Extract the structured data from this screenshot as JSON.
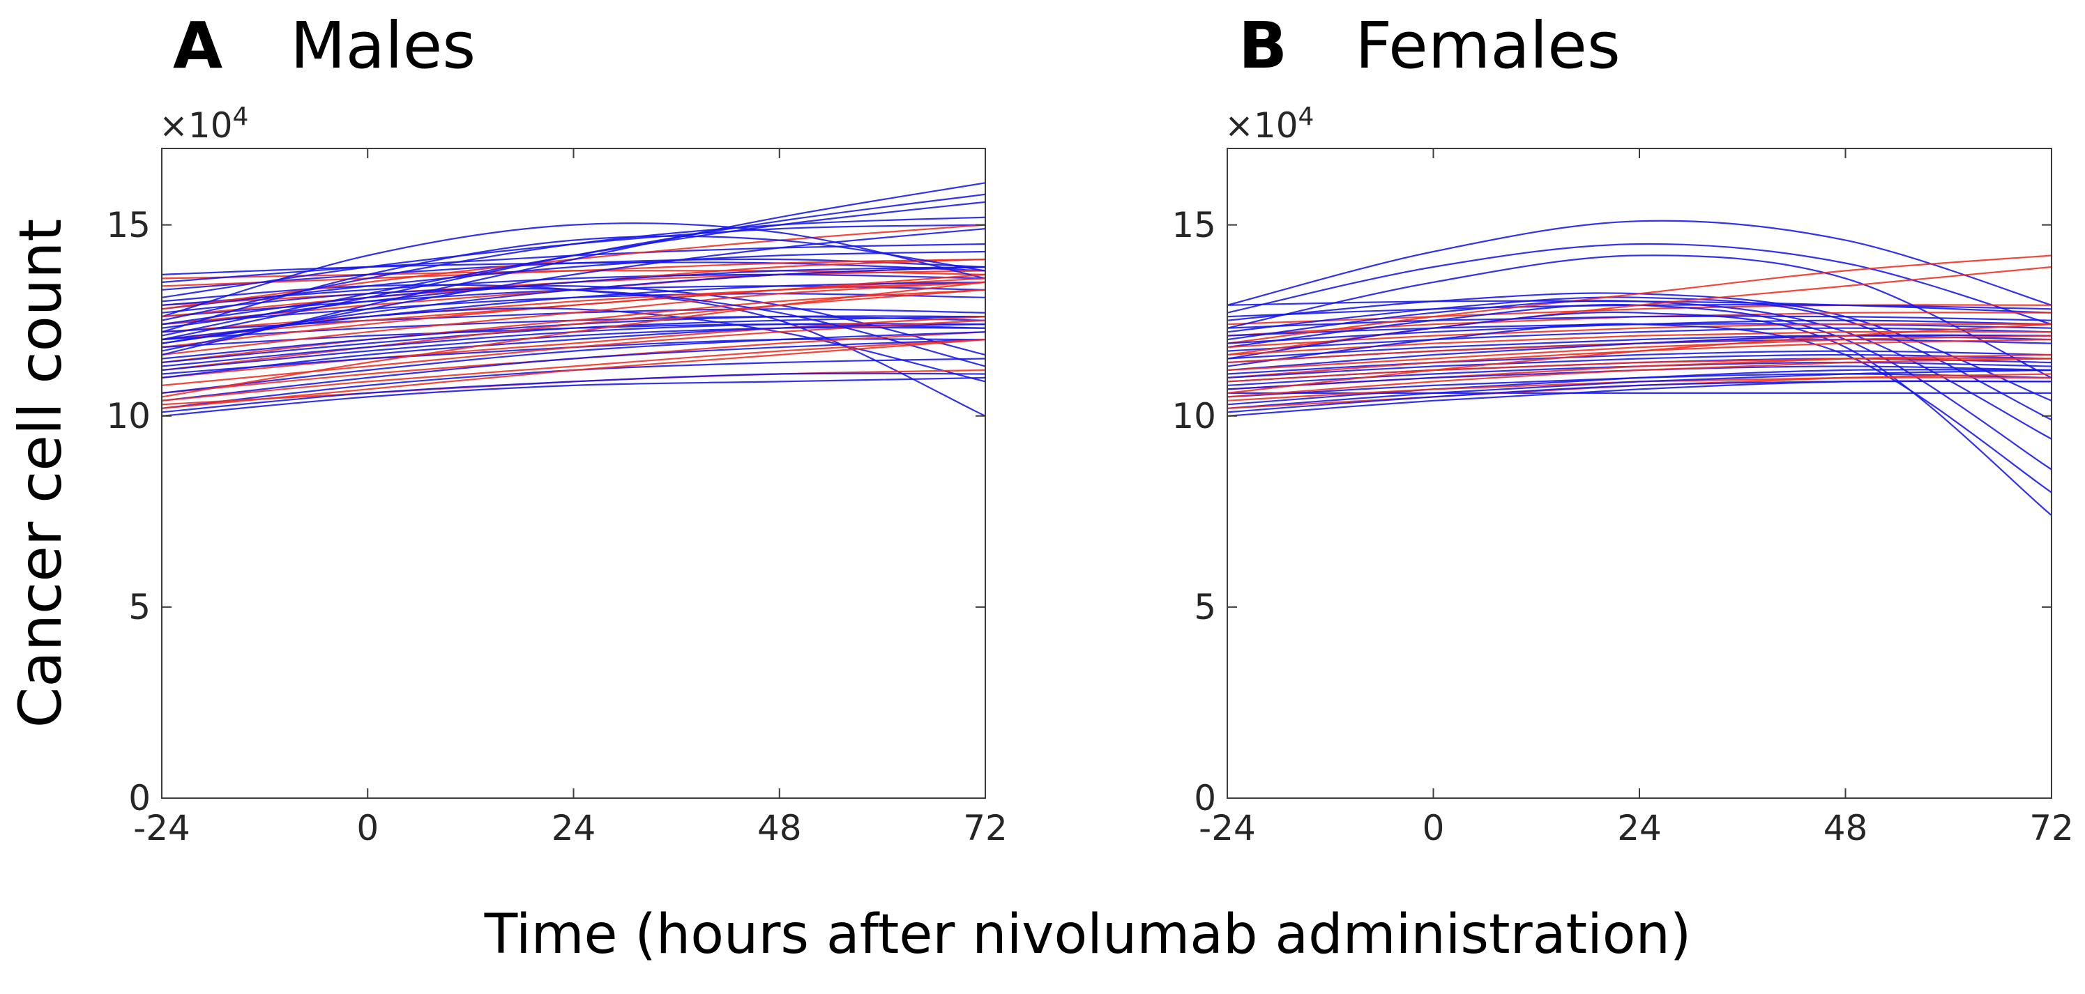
{
  "figure": {
    "xlabel": "Time (hours after nivolumab administration)",
    "ylabel": "Cancer cell count",
    "y_multiplier_base": "×10",
    "y_multiplier_exp": "4",
    "colors": {
      "blue_line": "#1515ee",
      "red_line": "#f52a1d",
      "axis": "#3c3c3c",
      "text": "#262626"
    }
  },
  "chart_data": [
    {
      "panel": "A",
      "title": "Males",
      "type": "line",
      "x": [
        -24,
        0,
        24,
        48,
        72
      ],
      "xlim": [
        -24,
        72
      ],
      "ylim": [
        0,
        17
      ],
      "xticks": [
        "-24",
        "0",
        "24",
        "48",
        "72"
      ],
      "yticks": [
        "0",
        "5",
        "10",
        "15"
      ],
      "ytick_values": [
        0,
        5,
        10,
        15
      ],
      "xtick_values": [
        -24,
        0,
        24,
        48,
        72
      ],
      "y_units": "x10^4 cells",
      "legend": "none",
      "grid": false,
      "series": [
        {
          "c": "b",
          "v": [
            13.7,
            13.9,
            14.0,
            14.0,
            13.8
          ]
        },
        {
          "c": "r",
          "v": [
            13.6,
            13.7,
            13.8,
            13.8,
            13.7
          ]
        },
        {
          "c": "b",
          "v": [
            13.5,
            13.9,
            14.2,
            14.4,
            14.5
          ]
        },
        {
          "c": "b",
          "v": [
            13.3,
            13.7,
            14.0,
            14.1,
            13.9
          ]
        },
        {
          "c": "r",
          "v": [
            13.4,
            13.6,
            13.8,
            14.0,
            14.1
          ]
        },
        {
          "c": "b",
          "v": [
            13.1,
            13.9,
            14.5,
            14.9,
            15.0
          ]
        },
        {
          "c": "b",
          "v": [
            13.0,
            13.4,
            13.3,
            12.5,
            10.0
          ]
        },
        {
          "c": "r",
          "v": [
            12.9,
            13.2,
            13.5,
            13.7,
            13.8
          ]
        },
        {
          "c": "b",
          "v": [
            12.9,
            13.3,
            13.6,
            13.7,
            13.6
          ]
        },
        {
          "c": "b",
          "v": [
            12.8,
            13.4,
            13.9,
            14.2,
            14.3
          ]
        },
        {
          "c": "r",
          "v": [
            12.8,
            13.5,
            14.1,
            14.6,
            15.0
          ]
        },
        {
          "c": "b",
          "v": [
            12.6,
            14.2,
            15.0,
            14.8,
            13.6
          ]
        },
        {
          "c": "b",
          "v": [
            12.6,
            13.0,
            13.3,
            13.4,
            13.3
          ]
        },
        {
          "c": "r",
          "v": [
            12.6,
            13.1,
            13.5,
            13.9,
            14.1
          ]
        },
        {
          "c": "b",
          "v": [
            12.5,
            13.6,
            14.5,
            15.0,
            15.2
          ]
        },
        {
          "c": "b",
          "v": [
            12.4,
            12.8,
            13.1,
            13.2,
            13.1
          ]
        },
        {
          "c": "r",
          "v": [
            12.4,
            12.9,
            13.3,
            13.7,
            13.9
          ]
        },
        {
          "c": "b",
          "v": [
            12.4,
            13.1,
            13.4,
            12.9,
            11.6
          ]
        },
        {
          "c": "b",
          "v": [
            12.3,
            13.0,
            13.5,
            13.8,
            13.9
          ]
        },
        {
          "c": "r",
          "v": [
            12.2,
            12.6,
            13.0,
            13.3,
            13.5
          ]
        },
        {
          "c": "b",
          "v": [
            12.2,
            13.7,
            14.6,
            14.6,
            13.8
          ]
        },
        {
          "c": "b",
          "v": [
            12.2,
            12.5,
            12.7,
            12.8,
            12.7
          ]
        },
        {
          "c": "b",
          "v": [
            12.1,
            13.2,
            14.2,
            15.0,
            15.6
          ]
        },
        {
          "c": "r",
          "v": [
            12.0,
            12.5,
            12.9,
            13.3,
            13.6
          ]
        },
        {
          "c": "b",
          "v": [
            12.0,
            12.6,
            13.1,
            13.4,
            13.5
          ]
        },
        {
          "c": "b",
          "v": [
            12.0,
            13.1,
            14.2,
            15.1,
            15.8
          ]
        },
        {
          "c": "b",
          "v": [
            12.0,
            12.3,
            12.5,
            12.6,
            12.5
          ]
        },
        {
          "c": "r",
          "v": [
            11.8,
            12.4,
            12.9,
            13.3,
            13.7
          ]
        },
        {
          "c": "b",
          "v": [
            11.9,
            12.7,
            13.3,
            13.7,
            13.9
          ]
        },
        {
          "c": "b",
          "v": [
            11.9,
            12.6,
            12.8,
            12.2,
            10.9
          ]
        },
        {
          "c": "b",
          "v": [
            11.8,
            12.1,
            12.3,
            12.4,
            12.3
          ]
        },
        {
          "c": "r",
          "v": [
            11.6,
            12.2,
            12.7,
            13.2,
            13.5
          ]
        },
        {
          "c": "b",
          "v": [
            11.7,
            12.8,
            13.7,
            14.4,
            14.9
          ]
        },
        {
          "c": "b",
          "v": [
            11.6,
            12.9,
            14.1,
            15.2,
            16.1
          ]
        },
        {
          "c": "r",
          "v": [
            11.4,
            12.0,
            12.5,
            13.0,
            13.3
          ]
        },
        {
          "c": "b",
          "v": [
            11.5,
            12.0,
            12.4,
            12.6,
            12.6
          ]
        },
        {
          "c": "b",
          "v": [
            11.4,
            11.9,
            12.3,
            12.5,
            12.6
          ]
        },
        {
          "c": "r",
          "v": [
            11.2,
            11.8,
            12.4,
            12.9,
            13.3
          ]
        },
        {
          "c": "b",
          "v": [
            11.3,
            11.8,
            12.2,
            12.4,
            12.4
          ]
        },
        {
          "c": "b",
          "v": [
            11.2,
            11.7,
            12.1,
            12.3,
            12.3
          ]
        },
        {
          "c": "r",
          "v": [
            11.0,
            11.5,
            11.9,
            12.3,
            12.6
          ]
        },
        {
          "c": "b",
          "v": [
            11.1,
            11.5,
            11.8,
            12.0,
            12.0
          ]
        },
        {
          "c": "b",
          "v": [
            11.0,
            11.6,
            12.0,
            12.3,
            12.4
          ]
        },
        {
          "c": "r",
          "v": [
            10.8,
            11.3,
            11.8,
            12.2,
            12.5
          ]
        },
        {
          "c": "b",
          "v": [
            12.7,
            13.2,
            13.3,
            12.7,
            11.3
          ]
        },
        {
          "c": "r",
          "v": [
            10.6,
            11.1,
            11.5,
            11.9,
            12.2
          ]
        },
        {
          "c": "b",
          "v": [
            10.6,
            11.2,
            11.7,
            12.0,
            12.2
          ]
        },
        {
          "c": "r",
          "v": [
            10.5,
            11.4,
            12.2,
            12.9,
            13.5
          ]
        },
        {
          "c": "b",
          "v": [
            10.4,
            11.0,
            11.5,
            11.8,
            12.0
          ]
        },
        {
          "c": "r",
          "v": [
            10.4,
            10.9,
            11.3,
            11.7,
            12.0
          ]
        },
        {
          "c": "b",
          "v": [
            10.2,
            10.8,
            11.2,
            11.4,
            11.5
          ]
        },
        {
          "c": "r",
          "v": [
            10.3,
            10.6,
            10.9,
            11.1,
            11.2
          ]
        },
        {
          "c": "b",
          "v": [
            10.1,
            10.6,
            10.9,
            11.1,
            11.1
          ]
        },
        {
          "c": "r",
          "v": [
            10.2,
            10.7,
            11.2,
            11.6,
            12.0
          ]
        },
        {
          "c": "b",
          "v": [
            10.0,
            10.5,
            10.8,
            10.9,
            11.0
          ]
        }
      ]
    },
    {
      "panel": "B",
      "title": "Females",
      "type": "line",
      "x": [
        -24,
        0,
        24,
        48,
        72
      ],
      "xlim": [
        -24,
        72
      ],
      "ylim": [
        0,
        17
      ],
      "xticks": [
        "-24",
        "0",
        "24",
        "48",
        "72"
      ],
      "yticks": [
        "0",
        "5",
        "10",
        "15"
      ],
      "ytick_values": [
        0,
        5,
        10,
        15
      ],
      "xtick_values": [
        -24,
        0,
        24,
        48,
        72
      ],
      "y_units": "x10^4 cells",
      "legend": "none",
      "grid": false,
      "series": [
        {
          "c": "b",
          "v": [
            12.9,
            14.3,
            15.1,
            14.6,
            12.9
          ]
        },
        {
          "c": "b",
          "v": [
            12.7,
            13.9,
            14.5,
            14.0,
            12.4
          ]
        },
        {
          "c": "b",
          "v": [
            12.9,
            13.0,
            13.0,
            12.9,
            12.7
          ]
        },
        {
          "c": "r",
          "v": [
            12.4,
            12.6,
            12.8,
            12.9,
            12.9
          ]
        },
        {
          "c": "b",
          "v": [
            12.6,
            12.8,
            12.9,
            12.9,
            12.8
          ]
        },
        {
          "c": "b",
          "v": [
            12.5,
            13.0,
            13.2,
            12.6,
            10.4
          ]
        },
        {
          "c": "b",
          "v": [
            12.3,
            13.5,
            14.2,
            13.6,
            11.0
          ]
        },
        {
          "c": "r",
          "v": [
            12.1,
            12.4,
            12.6,
            12.7,
            12.7
          ]
        },
        {
          "c": "b",
          "v": [
            12.3,
            12.5,
            12.6,
            12.6,
            12.5
          ]
        },
        {
          "c": "b",
          "v": [
            12.2,
            12.8,
            13.1,
            12.5,
            9.9
          ]
        },
        {
          "c": "b",
          "v": [
            12.1,
            12.3,
            12.4,
            12.4,
            12.3
          ]
        },
        {
          "c": "r",
          "v": [
            11.9,
            12.6,
            13.2,
            13.8,
            14.2
          ]
        },
        {
          "c": "b",
          "v": [
            12.0,
            12.7,
            13.0,
            12.2,
            9.4
          ]
        },
        {
          "c": "b",
          "v": [
            11.9,
            12.2,
            12.4,
            12.5,
            12.4
          ]
        },
        {
          "c": "b",
          "v": [
            11.8,
            12.5,
            12.9,
            12.0,
            8.6
          ]
        },
        {
          "c": "r",
          "v": [
            11.8,
            12.1,
            12.3,
            12.4,
            12.4
          ]
        },
        {
          "c": "b",
          "v": [
            11.7,
            12.0,
            12.2,
            12.3,
            12.2
          ]
        },
        {
          "c": "r",
          "v": [
            11.6,
            12.3,
            12.9,
            13.4,
            13.9
          ]
        },
        {
          "c": "b",
          "v": [
            11.5,
            12.3,
            12.7,
            11.8,
            7.4
          ]
        },
        {
          "c": "b",
          "v": [
            11.5,
            11.8,
            12.0,
            12.1,
            12.0
          ]
        },
        {
          "c": "r",
          "v": [
            11.6,
            11.9,
            12.1,
            12.2,
            12.2
          ]
        },
        {
          "c": "b",
          "v": [
            11.4,
            11.7,
            11.9,
            12.0,
            11.9
          ]
        },
        {
          "c": "b",
          "v": [
            11.3,
            12.0,
            12.4,
            11.6,
            8.0
          ]
        },
        {
          "c": "r",
          "v": [
            11.4,
            11.7,
            11.9,
            12.1,
            12.1
          ]
        },
        {
          "c": "b",
          "v": [
            11.2,
            11.6,
            11.9,
            12.1,
            12.1
          ]
        },
        {
          "c": "r",
          "v": [
            11.2,
            11.5,
            11.8,
            12.0,
            12.1
          ]
        },
        {
          "c": "b",
          "v": [
            11.1,
            11.4,
            11.6,
            11.7,
            11.6
          ]
        },
        {
          "c": "r",
          "v": [
            11.0,
            11.4,
            11.7,
            11.9,
            12.0
          ]
        },
        {
          "c": "b",
          "v": [
            11.0,
            11.3,
            11.5,
            11.6,
            11.5
          ]
        },
        {
          "c": "b",
          "v": [
            10.9,
            11.2,
            11.4,
            11.5,
            11.4
          ]
        },
        {
          "c": "r",
          "v": [
            10.9,
            11.2,
            11.4,
            11.5,
            11.5
          ]
        },
        {
          "c": "b",
          "v": [
            10.8,
            11.1,
            11.3,
            11.4,
            11.3
          ]
        },
        {
          "c": "r",
          "v": [
            10.7,
            11.0,
            11.3,
            11.5,
            11.6
          ]
        },
        {
          "c": "b",
          "v": [
            10.7,
            11.0,
            11.2,
            11.3,
            11.2
          ]
        },
        {
          "c": "b",
          "v": [
            10.6,
            10.6,
            10.6,
            10.6,
            10.6
          ]
        },
        {
          "c": "r",
          "v": [
            10.6,
            11.2,
            11.7,
            12.1,
            12.4
          ]
        },
        {
          "c": "b",
          "v": [
            10.5,
            10.8,
            11.0,
            11.1,
            11.0
          ]
        },
        {
          "c": "r",
          "v": [
            10.5,
            10.9,
            11.2,
            11.4,
            11.5
          ]
        },
        {
          "c": "b",
          "v": [
            10.3,
            10.7,
            11.0,
            11.2,
            11.2
          ]
        },
        {
          "c": "r",
          "v": [
            10.4,
            10.7,
            10.9,
            11.0,
            11.0
          ]
        },
        {
          "c": "b",
          "v": [
            10.2,
            10.6,
            10.9,
            11.1,
            11.2
          ]
        },
        {
          "c": "r",
          "v": [
            10.2,
            10.5,
            10.8,
            11.0,
            11.1
          ]
        },
        {
          "c": "b",
          "v": [
            10.1,
            10.5,
            10.8,
            10.9,
            10.9
          ]
        },
        {
          "c": "b",
          "v": [
            10.0,
            10.4,
            10.7,
            10.9,
            10.9
          ]
        }
      ]
    }
  ]
}
